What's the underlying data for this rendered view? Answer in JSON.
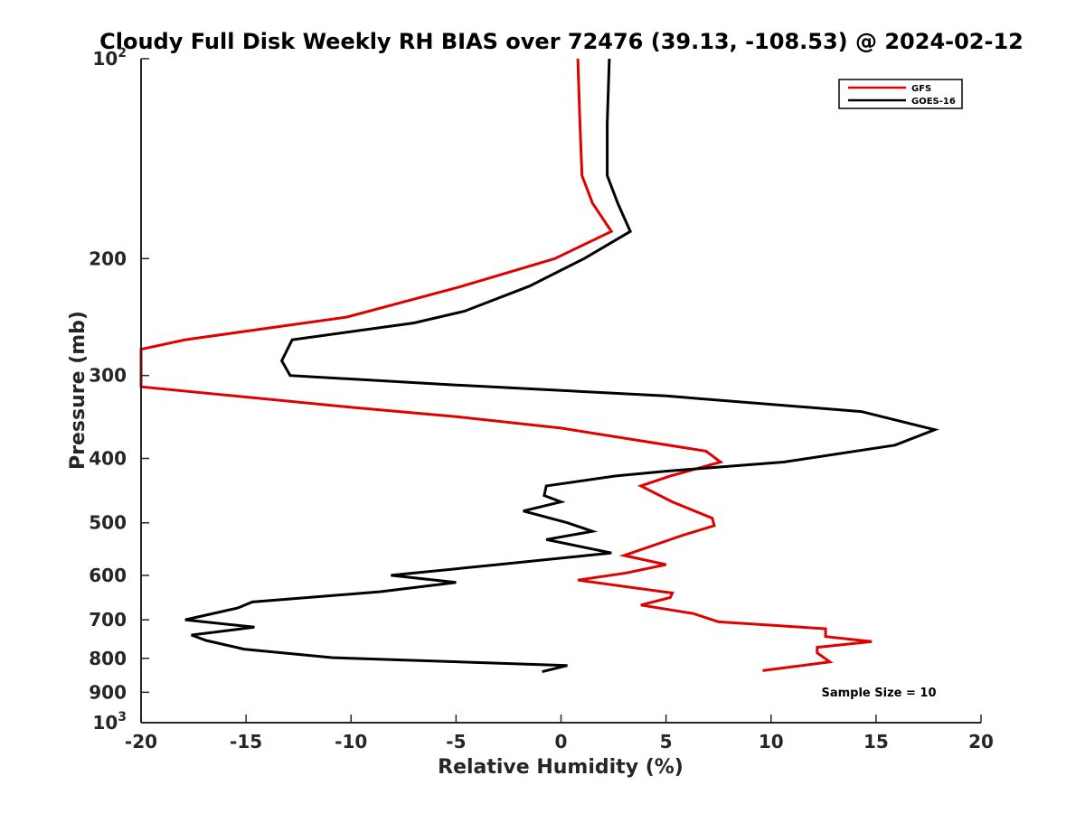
{
  "chart_data": {
    "type": "line",
    "title": "Cloudy Full Disk Weekly RH BIAS over 72476 (39.13, -108.53) @ 2024-02-12",
    "xlabel": "Relative Humidity (%)",
    "ylabel": "Pressure (mb)",
    "xlim": [
      -20,
      20
    ],
    "ylim": [
      100,
      1000
    ],
    "yscale": "log",
    "y_reversed": true,
    "x_ticks": [
      "-20",
      "-15",
      "-10",
      "-5",
      "0",
      "5",
      "10",
      "15",
      "20"
    ],
    "y_ticks": [
      {
        "value": 100,
        "base": "10",
        "exp": "2"
      },
      {
        "value": 200,
        "label": "200"
      },
      {
        "value": 300,
        "label": "300"
      },
      {
        "value": 400,
        "label": "400"
      },
      {
        "value": 500,
        "label": "500"
      },
      {
        "value": 600,
        "label": "600"
      },
      {
        "value": 700,
        "label": "700"
      },
      {
        "value": 800,
        "label": "800"
      },
      {
        "value": 900,
        "label": "900"
      },
      {
        "value": 1000,
        "base": "10",
        "exp": "3"
      }
    ],
    "legend_position": "top-right",
    "annotation": "Sample Size = 10",
    "series": [
      {
        "name": "GFS",
        "color": "#e00000",
        "points": [
          [
            0.8,
            100
          ],
          [
            0.9,
            125
          ],
          [
            1.0,
            150
          ],
          [
            1.5,
            165
          ],
          [
            2.4,
            182
          ],
          [
            -0.3,
            200
          ],
          [
            -4.9,
            221
          ],
          [
            -10.2,
            245
          ],
          [
            -17.9,
            265
          ],
          [
            -20.0,
            274
          ],
          [
            -20.0,
            312
          ],
          [
            -10.0,
            335
          ],
          [
            -5.0,
            346
          ],
          [
            0.0,
            360
          ],
          [
            6.9,
            390
          ],
          [
            7.6,
            405
          ],
          [
            5.2,
            425
          ],
          [
            3.8,
            440
          ],
          [
            5.3,
            465
          ],
          [
            7.2,
            492
          ],
          [
            7.3,
            505
          ],
          [
            5.8,
            522
          ],
          [
            3.0,
            560
          ],
          [
            5.0,
            578
          ],
          [
            3.1,
            595
          ],
          [
            0.8,
            610
          ],
          [
            5.3,
            638
          ],
          [
            5.2,
            648
          ],
          [
            3.8,
            665
          ],
          [
            6.3,
            685
          ],
          [
            7.5,
            705
          ],
          [
            12.6,
            722
          ],
          [
            12.6,
            742
          ],
          [
            14.8,
            755
          ],
          [
            12.2,
            770
          ],
          [
            12.2,
            785
          ],
          [
            12.8,
            810
          ],
          [
            9.6,
            835
          ]
        ]
      },
      {
        "name": "GOES-16",
        "color": "#000000",
        "points": [
          [
            2.3,
            100
          ],
          [
            2.2,
            125
          ],
          [
            2.2,
            150
          ],
          [
            2.7,
            165
          ],
          [
            3.3,
            182
          ],
          [
            1.1,
            200
          ],
          [
            -1.5,
            220
          ],
          [
            -4.6,
            240
          ],
          [
            -7.0,
            250
          ],
          [
            -12.8,
            265
          ],
          [
            -13.3,
            285
          ],
          [
            -12.9,
            300
          ],
          [
            -5.0,
            310
          ],
          [
            5.0,
            322
          ],
          [
            14.3,
            340
          ],
          [
            17.8,
            362
          ],
          [
            15.9,
            382
          ],
          [
            10.6,
            405
          ],
          [
            5.0,
            418
          ],
          [
            2.6,
            425
          ],
          [
            -0.7,
            440
          ],
          [
            -0.8,
            455
          ],
          [
            0.0,
            465
          ],
          [
            -1.8,
            480
          ],
          [
            0.3,
            500
          ],
          [
            1.5,
            515
          ],
          [
            -0.7,
            530
          ],
          [
            2.4,
            555
          ],
          [
            -3.0,
            578
          ],
          [
            -8.1,
            600
          ],
          [
            -5.0,
            615
          ],
          [
            -8.6,
            635
          ],
          [
            -14.7,
            658
          ],
          [
            -15.4,
            672
          ],
          [
            -17.9,
            700
          ],
          [
            -14.6,
            718
          ],
          [
            -17.6,
            738
          ],
          [
            -16.9,
            752
          ],
          [
            -15.1,
            775
          ],
          [
            -10.9,
            798
          ],
          [
            0.3,
            820
          ],
          [
            -0.9,
            838
          ]
        ]
      }
    ]
  }
}
